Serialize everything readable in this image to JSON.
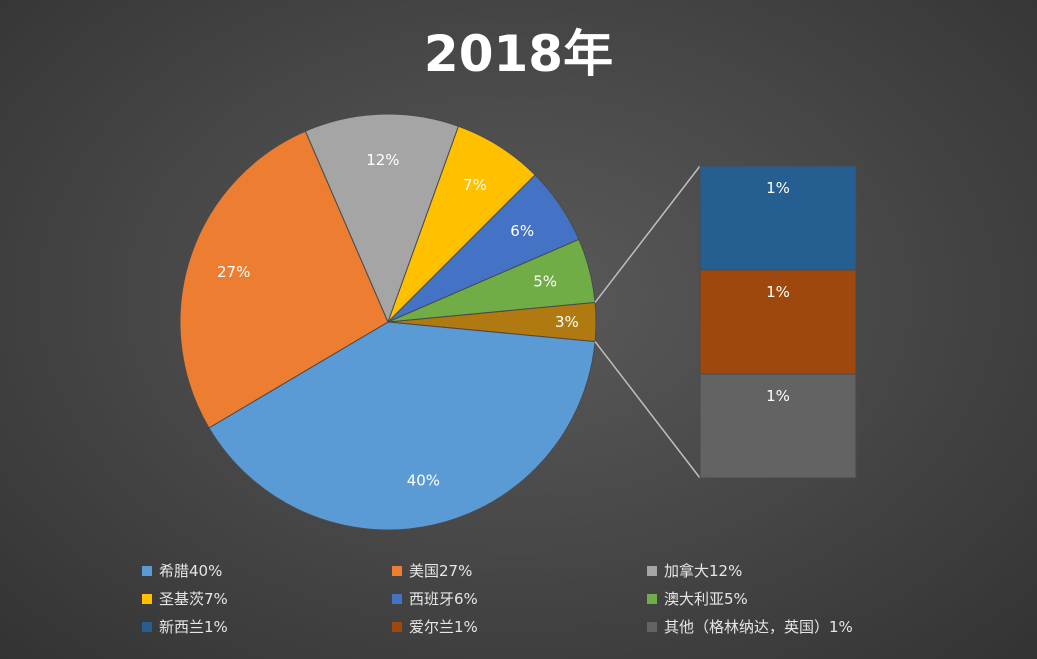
{
  "chart_data": {
    "type": "pie",
    "subtype": "bar-of-pie",
    "title": "2018年",
    "slices": [
      {
        "label": "3%",
        "value": 3,
        "color": "#b07a10"
      },
      {
        "label": "40%",
        "value": 40,
        "color": "#5b9bd5"
      },
      {
        "label": "27%",
        "value": 27,
        "color": "#ed7d31"
      },
      {
        "label": "12%",
        "value": 12,
        "color": "#a5a5a5"
      },
      {
        "label": "7%",
        "value": 7,
        "color": "#ffc000"
      },
      {
        "label": "6%",
        "value": 6,
        "color": "#4472c4"
      },
      {
        "label": "5%",
        "value": 5,
        "color": "#70ad47"
      }
    ],
    "secondary_bar": [
      {
        "label": "1%",
        "value": 1,
        "color": "#255e91"
      },
      {
        "label": "1%",
        "value": 1,
        "color": "#9e480e"
      },
      {
        "label": "1%",
        "value": 1,
        "color": "#636363"
      }
    ],
    "legend": [
      {
        "text": "希腊40%",
        "color": "#5b9bd5"
      },
      {
        "text": "美国27%",
        "color": "#ed7d31"
      },
      {
        "text": "加拿大12%",
        "color": "#a5a5a5"
      },
      {
        "text": "圣基茨7%",
        "color": "#ffc000"
      },
      {
        "text": "西班牙6%",
        "color": "#4472c4"
      },
      {
        "text": "澳大利亚5%",
        "color": "#70ad47"
      },
      {
        "text": "新西兰1%",
        "color": "#255e91"
      },
      {
        "text": "爱尔兰1%",
        "color": "#9e480e"
      },
      {
        "text": "其他（格林纳达，英国）1%",
        "color": "#636363"
      }
    ],
    "legend_position": "bottom"
  }
}
